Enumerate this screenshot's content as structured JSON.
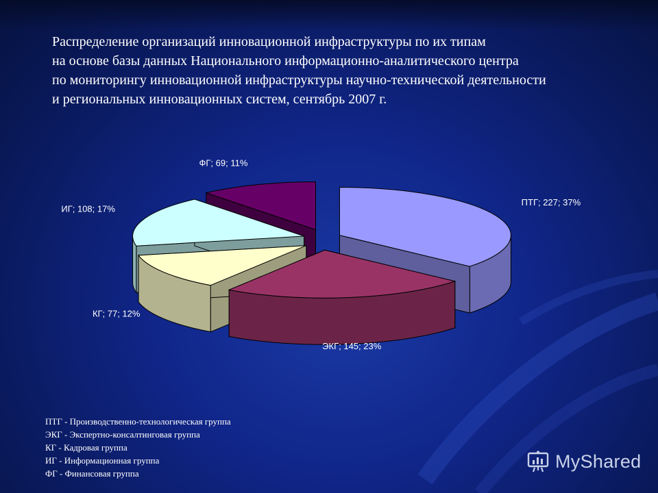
{
  "slide": {
    "title_lines": [
      "Распределение организаций инновационной инфраструктуры по их типам",
      "на основе базы данных Национального информационно-аналитического центра",
      "по мониторингу инновационной инфраструктуры научно-технической деятельности",
      "и региональных инновационных систем, сентябрь 2007 г."
    ],
    "legend_lines": [
      "ПТГ - Производственно-технологическая группа",
      "ЭКГ - Экспертно-консалтинговая группа",
      "КГ - Кадровая группа",
      "ИГ - Информационная группа",
      "ФГ - Финансовая группа"
    ],
    "watermark": "MyShared"
  },
  "chart_data": {
    "type": "pie",
    "style": "3d-exploded",
    "slices": [
      {
        "category": "ПТГ",
        "value": 227,
        "percent": 37,
        "label": "ПТГ; 227; 37%",
        "color": "#9999ff"
      },
      {
        "category": "ЭКГ",
        "value": 145,
        "percent": 23,
        "label": "ЭКГ; 145; 23%",
        "color": "#993366"
      },
      {
        "category": "КГ",
        "value": 77,
        "percent": 12,
        "label": "КГ; 77; 12%",
        "color": "#ffffcc"
      },
      {
        "category": "ИГ",
        "value": 108,
        "percent": 17,
        "label": "ИГ; 108; 17%",
        "color": "#ccffff"
      },
      {
        "category": "ФГ",
        "value": 69,
        "percent": 11,
        "label": "ФГ; 69; 11%",
        "color": "#660066"
      }
    ],
    "label_color": "#ffffff"
  }
}
